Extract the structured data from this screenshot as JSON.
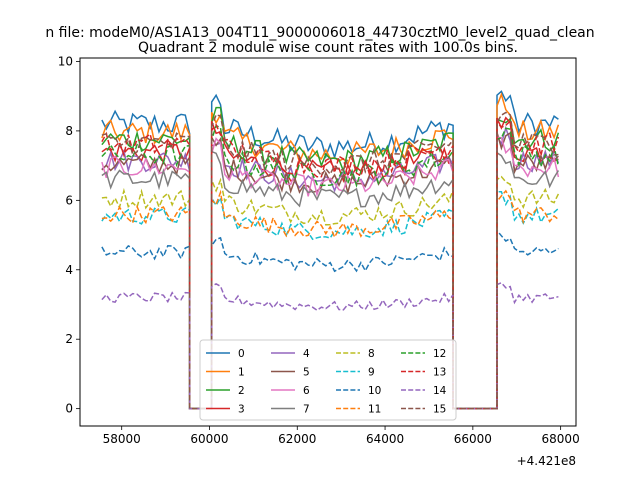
{
  "chart_data": {
    "type": "line",
    "suptitle": "n file: modeM0/AS1A13_004T11_9000006018_44730cztM0_level2_quad_clean",
    "title": "Quadrant 2 module wise count rates with 100.0s bins.",
    "xlabel": "",
    "ylabel": "",
    "x_offset_label": "+4.421e8",
    "xlim": [
      57050,
      68350
    ],
    "ylim": [
      -0.5,
      10.1
    ],
    "x_ticks": [
      58000,
      60000,
      62000,
      64000,
      66000,
      68000
    ],
    "x_tick_labels": [
      "58000",
      "60000",
      "62000",
      "64000",
      "66000",
      "68000"
    ],
    "y_ticks": [
      0,
      2,
      4,
      6,
      8,
      10
    ],
    "y_tick_labels": [
      "0",
      "2",
      "4",
      "6",
      "8",
      "10"
    ],
    "grid": false,
    "legend_placement": "lower center",
    "legend_columns": 4,
    "segments": [
      {
        "start": 57550,
        "end": 59550,
        "step": 100
      },
      {
        "start": 60050,
        "end": 65550,
        "step": 100
      },
      {
        "start": 66550,
        "end": 67950,
        "step": 100
      }
    ],
    "gap_segments": [
      [
        59550,
        59650,
        60050
      ],
      [
        65550,
        65650,
        66450,
        66550
      ]
    ],
    "series": [
      {
        "name": "0",
        "level": 8.2,
        "color": "#1f77b4",
        "dash": "solid"
      },
      {
        "name": "1",
        "level": 7.95,
        "color": "#ff7f0e",
        "dash": "solid"
      },
      {
        "name": "2",
        "level": 7.75,
        "color": "#2ca02c",
        "dash": "solid"
      },
      {
        "name": "3",
        "level": 7.4,
        "color": "#d62728",
        "dash": "solid"
      },
      {
        "name": "4",
        "level": 7.15,
        "color": "#9467bd",
        "dash": "solid"
      },
      {
        "name": "5",
        "level": 7.05,
        "color": "#8c564b",
        "dash": "solid"
      },
      {
        "name": "6",
        "level": 6.95,
        "color": "#e377c2",
        "dash": "solid"
      },
      {
        "name": "7",
        "level": 6.6,
        "color": "#7f7f7f",
        "dash": "solid"
      },
      {
        "name": "8",
        "level": 6.05,
        "color": "#bcbd22",
        "dash": "dashed"
      },
      {
        "name": "9",
        "level": 5.55,
        "color": "#17becf",
        "dash": "dashed"
      },
      {
        "name": "10",
        "level": 4.5,
        "color": "#1f77b4",
        "dash": "dashed"
      },
      {
        "name": "11",
        "level": 5.6,
        "color": "#ff7f0e",
        "dash": "dashed"
      },
      {
        "name": "12",
        "level": 7.3,
        "color": "#2ca02c",
        "dash": "dashed"
      },
      {
        "name": "13",
        "level": 7.6,
        "color": "#d62728",
        "dash": "dashed"
      },
      {
        "name": "14",
        "level": 3.2,
        "color": "#9467bd",
        "dash": "dashed"
      },
      {
        "name": "15",
        "level": 7.65,
        "color": "#8c564b",
        "dash": "dashed"
      }
    ]
  }
}
